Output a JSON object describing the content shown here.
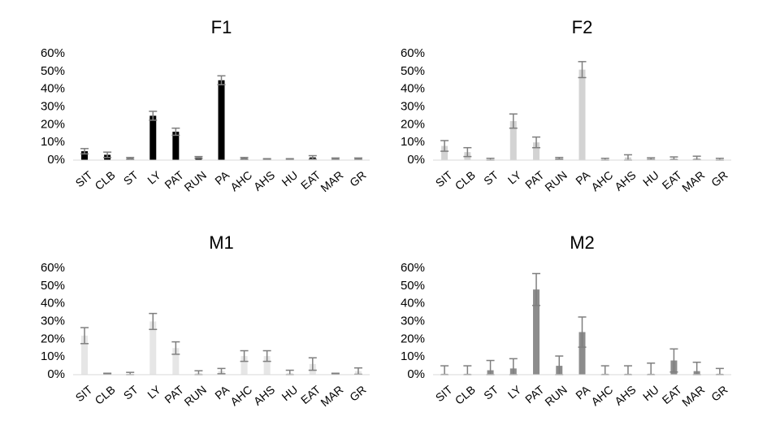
{
  "chart_data": [
    {
      "type": "bar",
      "title": "F1",
      "color": "#000000",
      "categories": [
        "SIT",
        "CLB",
        "ST",
        "LY",
        "PAT",
        "RUN",
        "PA",
        "AHC",
        "AHS",
        "HU",
        "EAT",
        "MAR",
        "GR"
      ],
      "values": [
        5,
        3,
        1,
        25,
        16,
        1.5,
        45,
        1,
        0.5,
        0.5,
        1.5,
        0.8,
        0.8
      ],
      "errors": [
        1.5,
        1.5,
        0.5,
        2.5,
        2,
        0.5,
        2.5,
        0.5,
        0.3,
        0.3,
        1,
        0.4,
        0.4
      ],
      "ylim": [
        0,
        60
      ],
      "yticks": [
        "0%",
        "10%",
        "20%",
        "30%",
        "40%",
        "50%",
        "60%"
      ],
      "xlabel": "",
      "ylabel": "",
      "grid": false
    },
    {
      "type": "bar",
      "title": "F2",
      "color": "#d3d3d3",
      "categories": [
        "SIT",
        "CLB",
        "ST",
        "LY",
        "PAT",
        "RUN",
        "PA",
        "AHC",
        "AHS",
        "HU",
        "EAT",
        "MAR",
        "GR"
      ],
      "values": [
        8,
        4.5,
        0.5,
        22,
        10,
        1,
        51,
        0.5,
        1.5,
        0.8,
        1,
        1.2,
        0.5
      ],
      "errors": [
        3,
        2.5,
        0.5,
        4,
        3,
        0.5,
        4.5,
        0.5,
        1.5,
        0.5,
        0.8,
        1,
        0.5
      ],
      "ylim": [
        0,
        60
      ],
      "yticks": [
        "0%",
        "10%",
        "20%",
        "30%",
        "40%",
        "50%",
        "60%"
      ],
      "xlabel": "",
      "ylabel": "",
      "grid": false
    },
    {
      "type": "bar",
      "title": "M1",
      "color": "#e6e6e6",
      "categories": [
        "SIT",
        "CLB",
        "ST",
        "LY",
        "PAT",
        "RUN",
        "PA",
        "AHC",
        "AHS",
        "HU",
        "EAT",
        "MAR",
        "GR"
      ],
      "values": [
        22,
        0.5,
        0.5,
        30,
        15,
        1,
        2,
        10.5,
        10.5,
        1,
        6,
        0.5,
        2
      ],
      "errors": [
        4.5,
        0.3,
        0.8,
        4.5,
        3.5,
        1.2,
        1.5,
        3,
        3,
        1.5,
        3.5,
        0.3,
        1.8
      ],
      "ylim": [
        0,
        60
      ],
      "yticks": [
        "0%",
        "10%",
        "20%",
        "30%",
        "40%",
        "50%",
        "60%"
      ],
      "xlabel": "",
      "ylabel": "",
      "grid": false
    },
    {
      "type": "bar",
      "title": "M2",
      "color": "#8c8c8c",
      "categories": [
        "SIT",
        "CLB",
        "ST",
        "LY",
        "PAT",
        "RUN",
        "PA",
        "AHC",
        "AHS",
        "HU",
        "EAT",
        "MAR",
        "GR"
      ],
      "values": [
        0.5,
        0.5,
        2.5,
        3.5,
        48,
        5,
        24,
        0.5,
        0.5,
        0.5,
        8,
        2,
        0.5
      ],
      "errors": [
        4.5,
        4.5,
        5.5,
        5.5,
        9,
        5.5,
        8.5,
        4.5,
        4.5,
        6,
        6.5,
        5,
        3
      ],
      "ylim": [
        0,
        60
      ],
      "yticks": [
        "0%",
        "10%",
        "20%",
        "30%",
        "40%",
        "50%",
        "60%"
      ],
      "xlabel": "",
      "ylabel": "",
      "grid": false
    }
  ]
}
